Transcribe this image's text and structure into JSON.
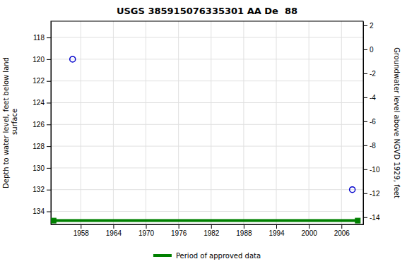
{
  "chart_data": {
    "type": "scatter",
    "title": "USGS 385915076335301 AA De  88",
    "y_label": "Depth to water level, feet below land\n surface",
    "y2_label": "Groundwater level above NGVD 1929, feet",
    "xlim": [
      1952.5,
      2010.0
    ],
    "xticks": [
      1958,
      1964,
      1970,
      1976,
      1982,
      1988,
      1994,
      2000,
      2006
    ],
    "ylim": [
      135.2,
      116.5
    ],
    "yticks": [
      118,
      120,
      122,
      124,
      126,
      128,
      130,
      132,
      134
    ],
    "y2lim": [
      -14.6,
      2.35
    ],
    "y2ticks": [
      2,
      0,
      -2,
      -4,
      -6,
      -8,
      -10,
      -12,
      -14
    ],
    "grid": true,
    "legend": "bottom",
    "series": [
      {
        "type": "scatter",
        "color": "#0000cc",
        "marker": "circle",
        "x": [
          1956.5,
          2008.0
        ],
        "values": [
          120.0,
          132.0
        ]
      },
      {
        "name": "Period of approved data",
        "type": "line",
        "color": "#008000",
        "marker": "square",
        "line_style": "solid",
        "x": [
          1953.0,
          2009.0
        ],
        "values": [
          134.85,
          134.85
        ]
      }
    ]
  }
}
